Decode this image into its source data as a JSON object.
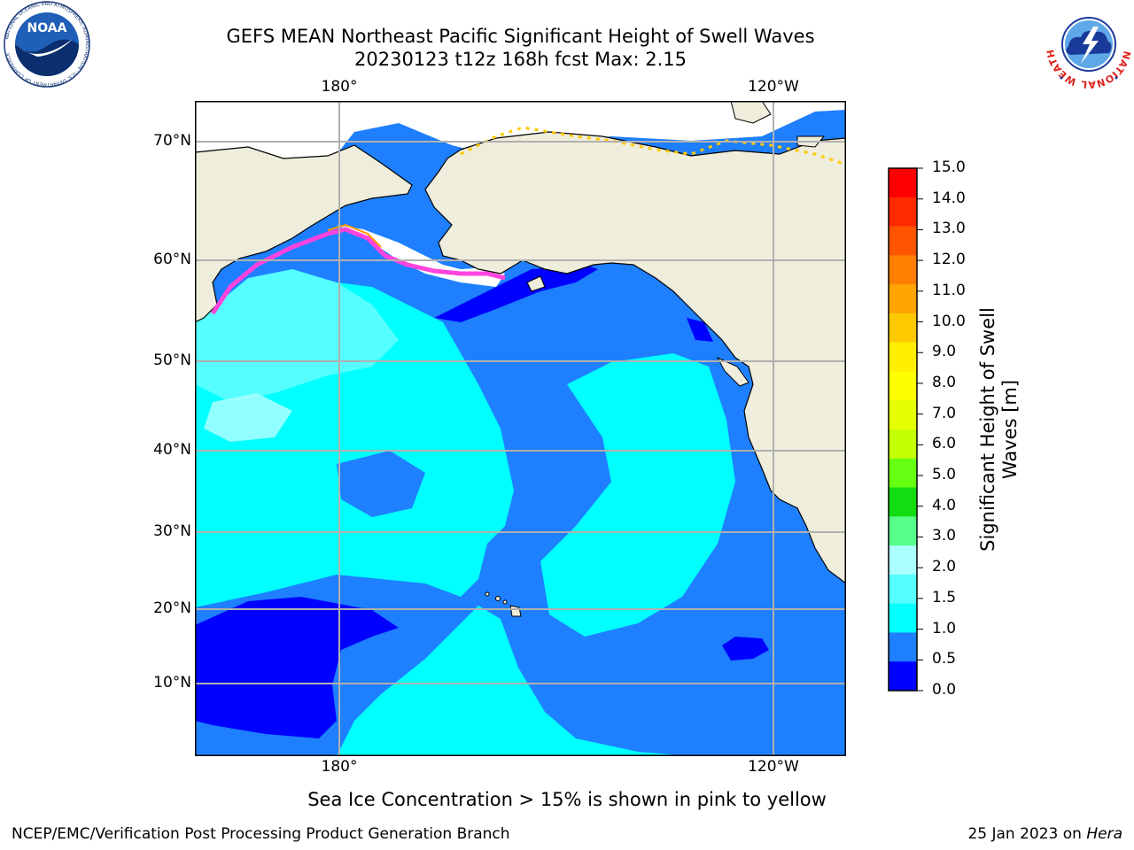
{
  "header": {
    "title_line1": "GEFS MEAN Northeast Pacific Significant Height of Swell Waves",
    "title_line2": "20230123 t12z 168h fcst   Max: 2.15"
  },
  "logos": {
    "noaa_wordmark": "NOAA",
    "noaa_ring_text": "NATIONAL OCEANIC AND ATMOSPHERIC ADMINISTRATION · U.S. DEPARTMENT OF COMMERCE",
    "nws_ring_text": "NATIONAL WEATHER SERVICE"
  },
  "map": {
    "lon_top": [
      "180°",
      "120°W"
    ],
    "lon_bottom": [
      "180°",
      "120°W"
    ],
    "lat_labels": [
      "70°N",
      "60°N",
      "50°N",
      "40°N",
      "30°N",
      "20°N",
      "10°N"
    ],
    "colors": {
      "land": "#efeddc",
      "ice_free": "#ffffff",
      "grid": "#b0b0b0",
      "coast": "#000000"
    }
  },
  "colorbar": {
    "label_line1": "Significant Height of Swell",
    "label_line2": "Waves [m]",
    "ticks": [
      "15.0",
      "14.0",
      "13.0",
      "12.0",
      "11.0",
      "10.0",
      "9.0",
      "8.0",
      "7.0",
      "6.0",
      "5.0",
      "4.0",
      "3.0",
      "2.0",
      "1.5",
      "1.0",
      "0.5",
      "0.0"
    ],
    "colors_top_to_bottom": [
      "#ff0000",
      "#ff2a00",
      "#ff5500",
      "#ff7f00",
      "#ffa400",
      "#ffc900",
      "#ffee00",
      "#ffff00",
      "#e5ff00",
      "#c3ff00",
      "#66ff11",
      "#11dd11",
      "#55ff88",
      "#aaffff",
      "#55ffff",
      "#00ffff",
      "#1e7fff",
      "#0000ff"
    ]
  },
  "footer": {
    "ice_note": "Sea Ice Concentration > 15% is shown in pink to yellow",
    "left": "NCEP/EMC/Verification Post Processing Product Generation Branch",
    "date": "25 Jan 2023 on",
    "machine": "Hera"
  }
}
